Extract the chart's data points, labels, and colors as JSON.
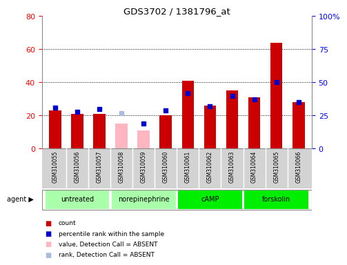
{
  "title": "GDS3702 / 1381796_at",
  "samples": [
    "GSM310055",
    "GSM310056",
    "GSM310057",
    "GSM310058",
    "GSM310059",
    "GSM310060",
    "GSM310061",
    "GSM310062",
    "GSM310063",
    "GSM310064",
    "GSM310065",
    "GSM310066"
  ],
  "bar_values": [
    23,
    21,
    21,
    15,
    11,
    20,
    41,
    26,
    35,
    31,
    64,
    28
  ],
  "bar_absent": [
    false,
    false,
    false,
    true,
    true,
    false,
    false,
    false,
    false,
    false,
    false,
    false
  ],
  "rank_values": [
    31,
    28,
    30,
    27,
    19,
    29,
    42,
    32,
    40,
    37,
    50,
    35
  ],
  "rank_absent": [
    false,
    false,
    false,
    true,
    false,
    false,
    false,
    false,
    false,
    false,
    false,
    false
  ],
  "ylim_left": [
    0,
    80
  ],
  "ylim_right": [
    0,
    100
  ],
  "yticks_left": [
    0,
    20,
    40,
    60,
    80
  ],
  "yticks_right": [
    0,
    25,
    50,
    75,
    100
  ],
  "ytick_labels_right": [
    "0",
    "25",
    "50",
    "75",
    "100%"
  ],
  "group_data": [
    {
      "label": "untreated",
      "start": 0,
      "end": 2,
      "color": "#AAFFAA"
    },
    {
      "label": "norepinephrine",
      "start": 3,
      "end": 5,
      "color": "#AAFFAA"
    },
    {
      "label": "cAMP",
      "start": 6,
      "end": 8,
      "color": "#00EE00"
    },
    {
      "label": "forskolin",
      "start": 9,
      "end": 11,
      "color": "#00EE00"
    }
  ],
  "bar_color_normal": "#CC0000",
  "bar_color_absent": "#FFB6C1",
  "rank_color_normal": "#0000CC",
  "rank_color_absent": "#AABBDD",
  "plot_bg": "#FFFFFF",
  "label_bg": "#D3D3D3",
  "legend_items": [
    {
      "label": "count",
      "color": "#CC0000"
    },
    {
      "label": "percentile rank within the sample",
      "color": "#0000CC"
    },
    {
      "label": "value, Detection Call = ABSENT",
      "color": "#FFB6C1"
    },
    {
      "label": "rank, Detection Call = ABSENT",
      "color": "#AABBDD"
    }
  ]
}
